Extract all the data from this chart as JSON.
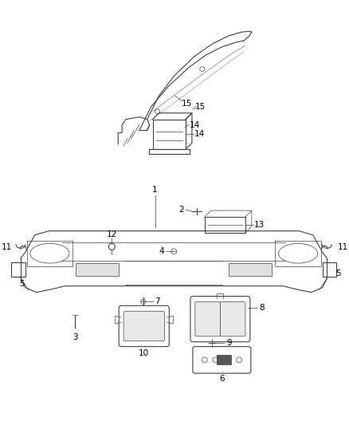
{
  "bg_color": "#ffffff",
  "line_color": "#404040",
  "label_color": "#000000",
  "fig_width": 4.38,
  "fig_height": 5.33,
  "dpi": 100
}
